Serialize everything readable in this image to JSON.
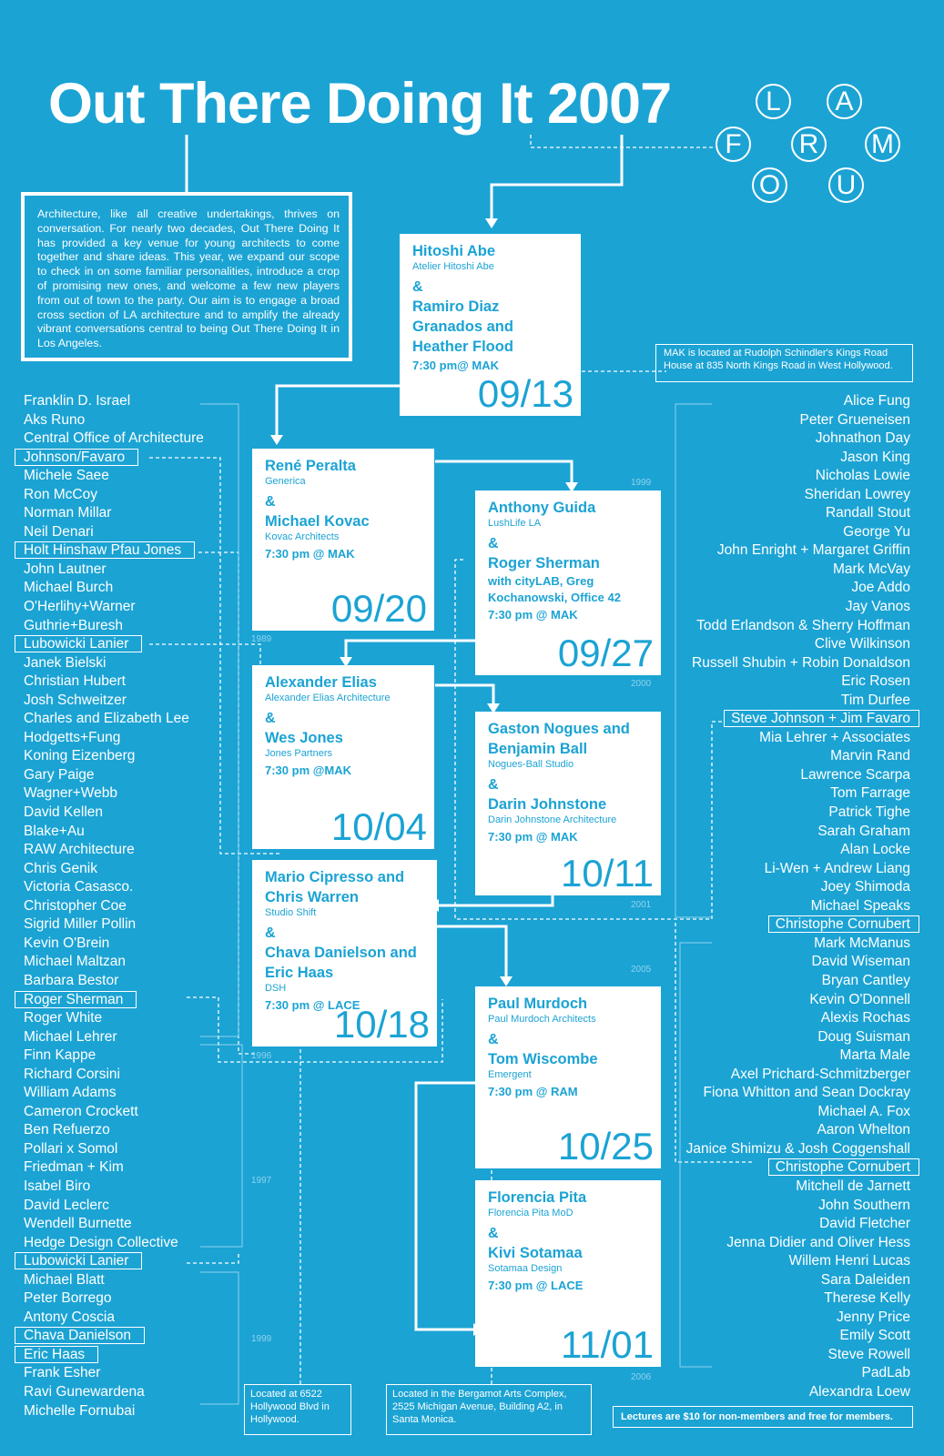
{
  "title": "Out There Doing It 2007",
  "intro": "Architecture, like all creative undertakings, thrives on conversation. For nearly two decades, Out There Doing It has provided a key venue for young architects to come together and share ideas. This year, we expand our scope to check in on some familiar personalities, introduce a crop of promising new ones, and welcome a few new players from out of town to the party. Our aim is to engage a broad cross section of LA architecture and to amplify the already vibrant conversations central to being Out There Doing It in Los Angeles.",
  "logo": [
    "L",
    "A",
    "F",
    "R",
    "M",
    "O",
    "U"
  ],
  "notes": {
    "mak": "MAK is located at Rudolph Schindler's Kings Road House at 835 North Kings Road in West Hollywood.",
    "lace": "Located at 6522 Hollywood Blvd in Hollywood.",
    "ram": "Located in the Bergamot Arts Complex, 2525 Michigan Avenue, Building A2, in Santa Monica.",
    "fees": "Lectures are $10 for non-members and free for members."
  },
  "lectures": [
    {
      "name1": "Hitoshi Abe",
      "studio1": "Atelier Hitoshi Abe",
      "amp": "&",
      "name2": "Ramiro Diaz Granados and Heather Flood",
      "studio2": "",
      "with": "",
      "time": "7:30 pm@ MAK",
      "date": "09/13"
    },
    {
      "name1": "René Peralta",
      "studio1": "Generica",
      "amp": "&",
      "name2": "Michael Kovac",
      "studio2": "Kovac Architects",
      "with": "",
      "time": "7:30 pm @ MAK",
      "date": "09/20"
    },
    {
      "name1": "Anthony Guida",
      "studio1": "LushLife LA",
      "amp": "&",
      "name2": "Roger Sherman",
      "studio2": "",
      "with": "with cityLAB, Greg Kochanowski, Office 42",
      "time": "7:30 pm @ MAK",
      "date": "09/27"
    },
    {
      "name1": "Alexander Elias",
      "studio1": "Alexander Elias Architecture",
      "amp": "&",
      "name2": "Wes Jones",
      "studio2": "Jones Partners",
      "with": "",
      "time": "7:30 pm @MAK",
      "date": "10/04"
    },
    {
      "name1": "Gaston Nogues and Benjamin Ball",
      "studio1": "Nogues-Ball Studio",
      "amp": "&",
      "name2": "Darin Johnstone",
      "studio2": "Darin Johnstone Architecture",
      "with": "",
      "time": "7:30 pm @ MAK",
      "date": "10/11"
    },
    {
      "name1": "Mario Cipresso and Chris Warren",
      "studio1": "Studio Shift",
      "amp": "&",
      "name2": "Chava Danielson and Eric Haas",
      "studio2": "DSH",
      "with": "",
      "time": "7:30 pm @ LACE",
      "date": "10/18"
    },
    {
      "name1": "Paul Murdoch",
      "studio1": "Paul Murdoch Architects",
      "amp": "&",
      "name2": "Tom Wiscombe",
      "studio2": "Emergent",
      "with": "",
      "time": "7:30 pm @ RAM",
      "date": "10/25"
    },
    {
      "name1": "Florencia Pita",
      "studio1": "Florencia Pita MoD",
      "amp": "&",
      "name2": "Kivi Sotamaa",
      "studio2": "Sotamaa Design",
      "with": "",
      "time": "7:30 pm @ LACE",
      "date": "11/01"
    }
  ],
  "left_names": [
    "Franklin D. Israel",
    "Aks Runo",
    "Central Office of Architecture",
    "Johnson/Favaro",
    "Michele Saee",
    "Ron McCoy",
    "Norman Millar",
    "Neil Denari",
    "Holt Hinshaw Pfau Jones",
    "John Lautner",
    "Michael Burch",
    "O'Herlihy+Warner",
    "Guthrie+Buresh",
    "Lubowicki Lanier",
    "Janek Bielski",
    "Christian Hubert",
    "Josh Schweitzer",
    "Charles and Elizabeth Lee",
    "Hodgetts+Fung",
    "Koning Eizenberg",
    "Gary Paige",
    "Wagner+Webb",
    "David Kellen",
    "Blake+Au",
    "RAW Architecture",
    "Chris Genik",
    "Victoria Casasco.",
    "Christopher Coe",
    "Sigrid Miller Pollin",
    "Kevin O'Brein",
    "Michael Maltzan",
    "Barbara Bestor",
    "Roger Sherman",
    "Roger White",
    "Michael Lehrer",
    "Finn Kappe",
    "Richard Corsini",
    "William Adams",
    "Cameron Crockett",
    "Ben Refuerzo",
    "Pollari x Somol",
    "Friedman + Kim",
    "Isabel Biro",
    "David Leclerc",
    "Wendell Burnette",
    "Hedge Design Collective",
    "Lubowicki Lanier",
    "Michael Blatt",
    "Peter Borrego",
    "Antony Coscia",
    "Chava Danielson",
    "Eric Haas",
    "Frank Esher",
    "Ravi Gunewardena",
    "Michelle Fornubai"
  ],
  "right_names": [
    "Alice Fung",
    "Peter Grueneisen",
    "Johnathon Day",
    "Jason King",
    "Nicholas Lowie",
    "Sheridan Lowrey",
    "Randall Stout",
    "George Yu",
    "John Enright + Margaret Griffin",
    "Mark McVay",
    "Joe Addo",
    "Jay Vanos",
    "Todd Erlandson & Sherry Hoffman",
    "Clive Wilkinson",
    "Russell Shubin + Robin Donaldson",
    "Eric Rosen",
    "Tim Durfee",
    "Steve Johnson + Jim Favaro",
    "Mia Lehrer + Associates",
    "Marvin Rand",
    "Lawrence Scarpa",
    "Tom Farrage",
    "Patrick Tighe",
    "Sarah Graham",
    "Alan Locke",
    "Li-Wen + Andrew Liang",
    "Joey Shimoda",
    "Michael Speaks",
    "Christophe Cornubert",
    "Mark McManus",
    "David Wiseman",
    "Bryan Cantley",
    "Kevin O'Donnell",
    "Alexis Rochas",
    "Doug Suisman",
    "Marta Male",
    "Axel Prichard-Schmitzberger",
    "Fiona Whitton and Sean Dockray",
    "Michael A. Fox",
    "Aaron Whelton",
    "Janice Shimizu & Josh Coggenshall",
    "Christophe Cornubert",
    "Mitchell de Jarnett",
    "John Southern",
    "David Fletcher",
    "Jenna Didier and Oliver Hess",
    "Willem Henri Lucas",
    "Sara Daleiden",
    "Therese Kelly",
    "Jenny Price",
    "Emily Scott",
    "Steve Rowell",
    "PadLab",
    "Alexandra Loew"
  ],
  "years": [
    "1989",
    "1996",
    "1997",
    "1999",
    "1999",
    "2000",
    "2001",
    "2005",
    "2006"
  ]
}
